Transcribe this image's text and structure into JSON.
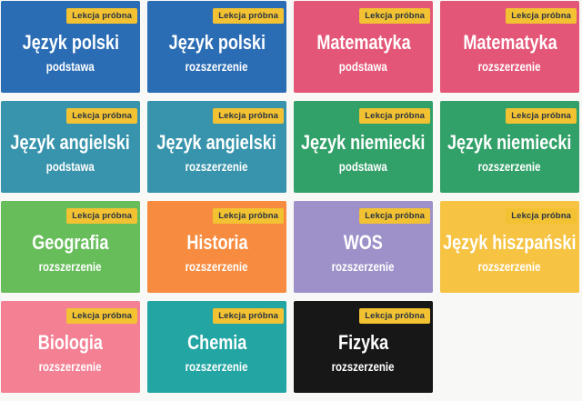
{
  "page": {
    "background_color": "#f8f8f6"
  },
  "badge": {
    "label": "Lekcja próbna",
    "bg_color": "#f2c233",
    "text_color": "#2a3342"
  },
  "cards": [
    {
      "title": "Język polski",
      "level": "podstawa",
      "bg_color": "#2b6db4"
    },
    {
      "title": "Język polski",
      "level": "rozszerzenie",
      "bg_color": "#2b6db4"
    },
    {
      "title": "Matematyka",
      "level": "podstawa",
      "bg_color": "#e45677"
    },
    {
      "title": "Matematyka",
      "level": "rozszerzenie",
      "bg_color": "#e45677"
    },
    {
      "title": "Język angielski",
      "level": "podstawa",
      "bg_color": "#3894ac"
    },
    {
      "title": "Język angielski",
      "level": "rozszerzenie",
      "bg_color": "#3894ac"
    },
    {
      "title": "Język niemiecki",
      "level": "podstawa",
      "bg_color": "#32a169"
    },
    {
      "title": "Język niemiecki",
      "level": "rozszerzenie",
      "bg_color": "#32a169"
    },
    {
      "title": "Geografia",
      "level": "rozszerzenie",
      "bg_color": "#67bd5a"
    },
    {
      "title": "Historia",
      "level": "rozszerzenie",
      "bg_color": "#f78b3f"
    },
    {
      "title": "WOS",
      "level": "rozszerzenie",
      "bg_color": "#9e91c9"
    },
    {
      "title": "Język hiszpański",
      "level": "rozszerzenie",
      "bg_color": "#f6c343"
    },
    {
      "title": "Biologia",
      "level": "rozszerzenie",
      "bg_color": "#f48093"
    },
    {
      "title": "Chemia",
      "level": "rozszerzenie",
      "bg_color": "#23a5a3"
    },
    {
      "title": "Fizyka",
      "level": "rozszerzenie",
      "bg_color": "#171717"
    }
  ]
}
